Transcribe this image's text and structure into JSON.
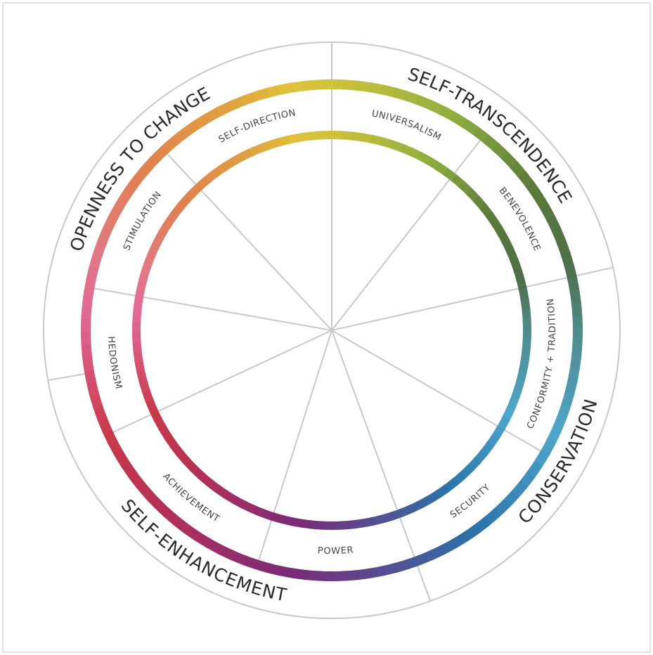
{
  "outer_labels": [
    "OPENNESS TO CHANGE",
    "SELF-TRANSCENDENCE",
    "CONSERVATION",
    "SELF-ENHANCEMENT"
  ],
  "value_labels": [
    "SELF-DIRECTION",
    "UNIVERSALISM",
    "BENEVOLENCE",
    "CONFORMITY + TRADITION",
    "SECURITY",
    "POWER",
    "ACHIEVEMENT",
    "HEDONISM",
    "STIMULATION"
  ]
}
